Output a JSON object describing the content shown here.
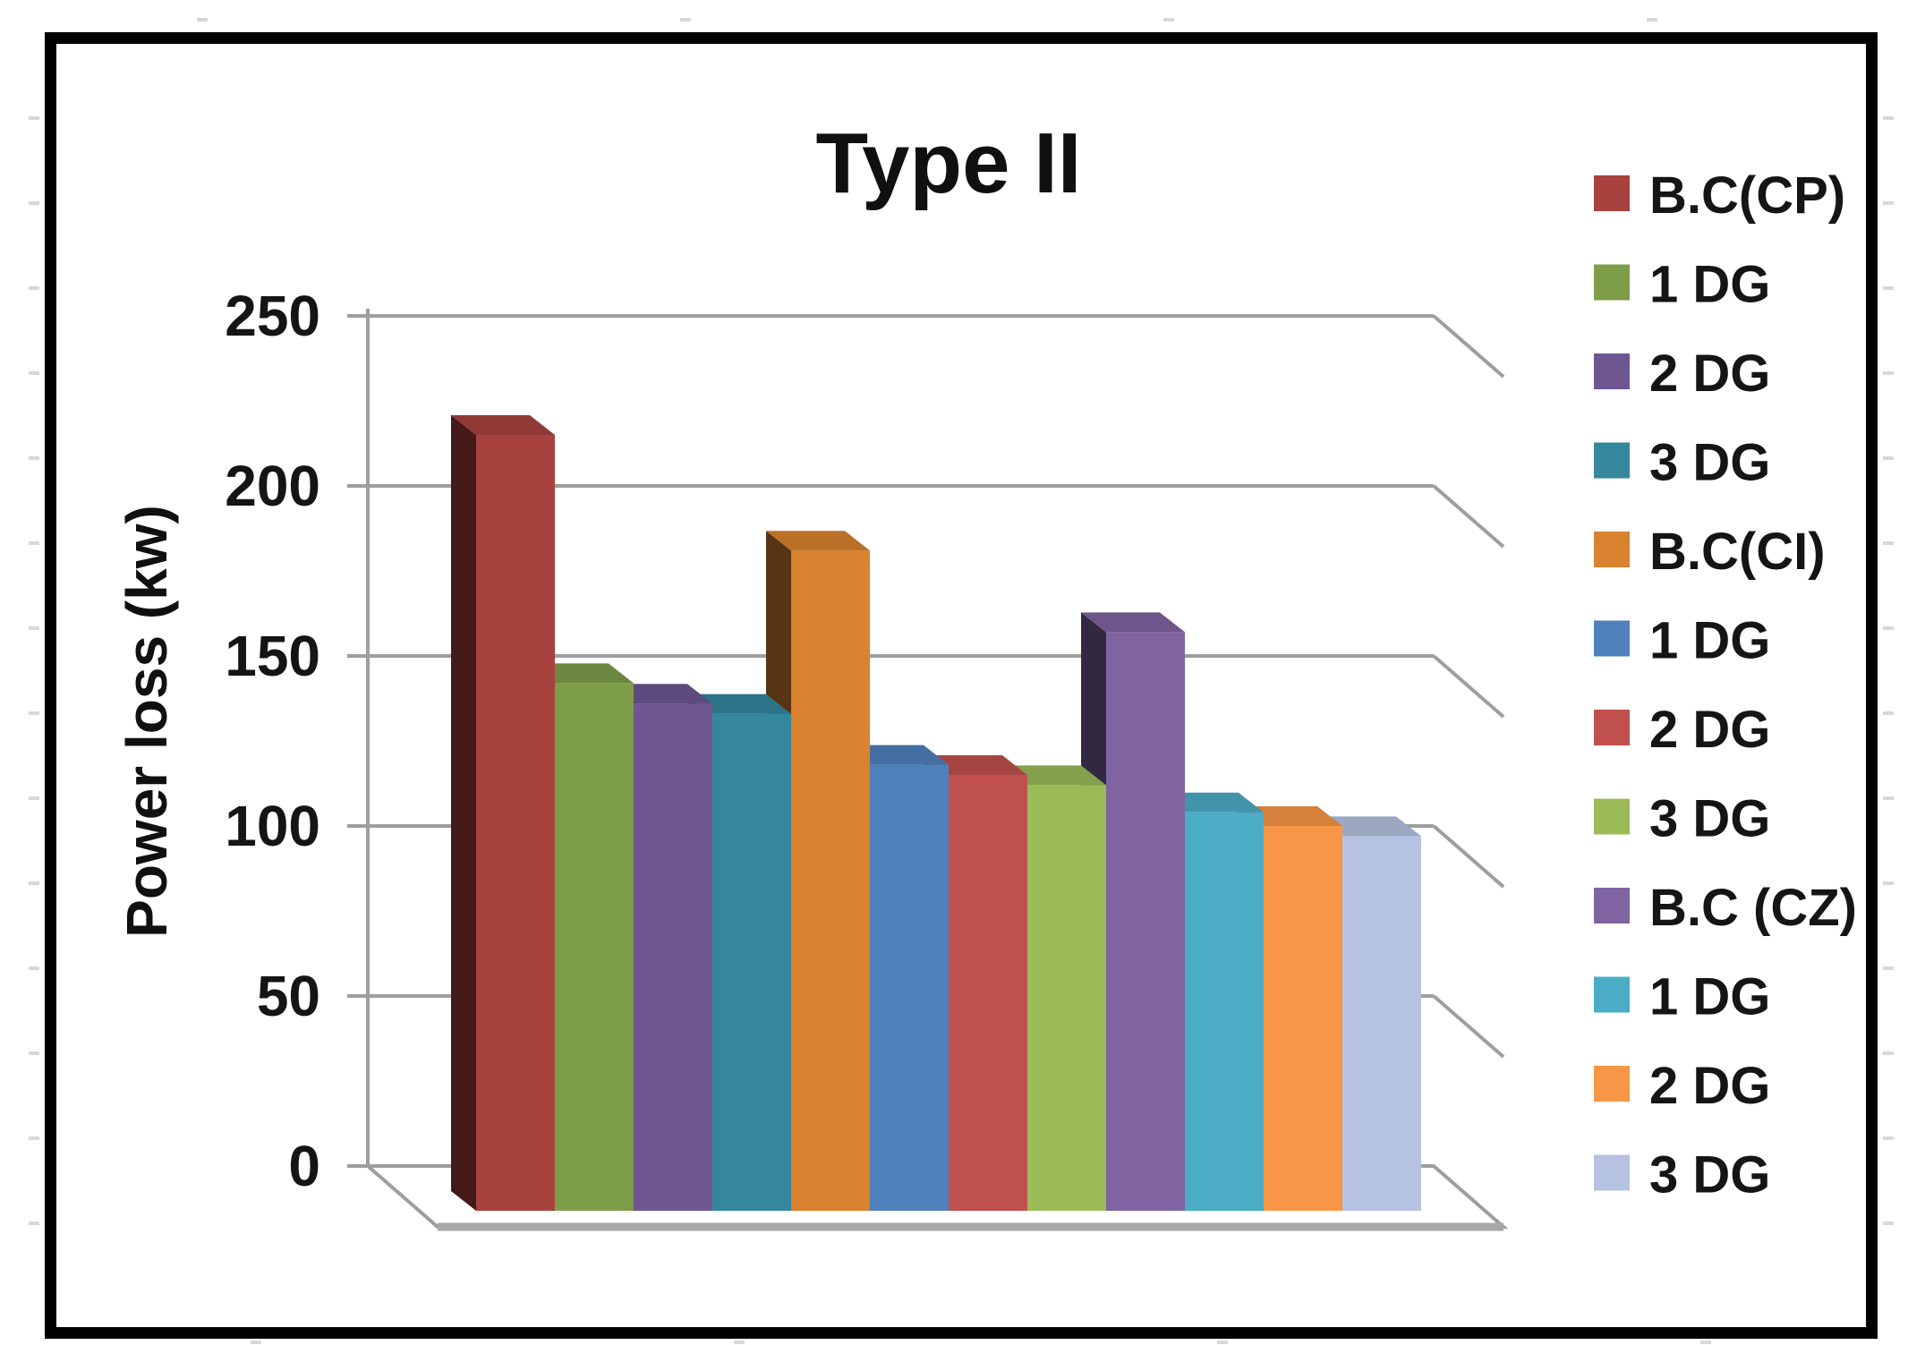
{
  "figure": {
    "border_color": "#000000",
    "background": "#ffffff",
    "gridline_color": "#9e9e9e",
    "floor_edge_color": "#a8a8a8",
    "outer_tick_color": "#d8d8d8"
  },
  "chart_data": {
    "type": "bar",
    "projection": "3d-column",
    "title": "Type II",
    "xlabel": "",
    "ylabel": "Power loss (kw)",
    "ylim": [
      0,
      250
    ],
    "yticks": [
      0,
      50,
      100,
      150,
      200,
      250
    ],
    "grid": true,
    "legend_position": "right",
    "categories": [
      ""
    ],
    "series": [
      {
        "name": "B.C(CP)",
        "color": "#A8423E",
        "values": [
          215
        ]
      },
      {
        "name": "1 DG",
        "color": "#7E9D49",
        "values": [
          142
        ]
      },
      {
        "name": "2 DG",
        "color": "#6E5691",
        "values": [
          136
        ]
      },
      {
        "name": "3 DG",
        "color": "#35879E",
        "values": [
          133
        ]
      },
      {
        "name": "B.C(CI)",
        "color": "#D9822F",
        "values": [
          181
        ]
      },
      {
        "name": "1 DG",
        "color": "#4F81BD",
        "values": [
          118
        ]
      },
      {
        "name": "2 DG",
        "color": "#C0504D",
        "values": [
          115
        ]
      },
      {
        "name": "3 DG",
        "color": "#9BBB59",
        "values": [
          112
        ]
      },
      {
        "name": "B.C (CZ)",
        "color": "#8064A2",
        "values": [
          157
        ]
      },
      {
        "name": "1 DG",
        "color": "#4BACC6",
        "values": [
          104
        ]
      },
      {
        "name": "2 DG",
        "color": "#F79646",
        "values": [
          100
        ]
      },
      {
        "name": "3 DG",
        "color": "#B5C2E2",
        "values": [
          97
        ]
      }
    ]
  }
}
